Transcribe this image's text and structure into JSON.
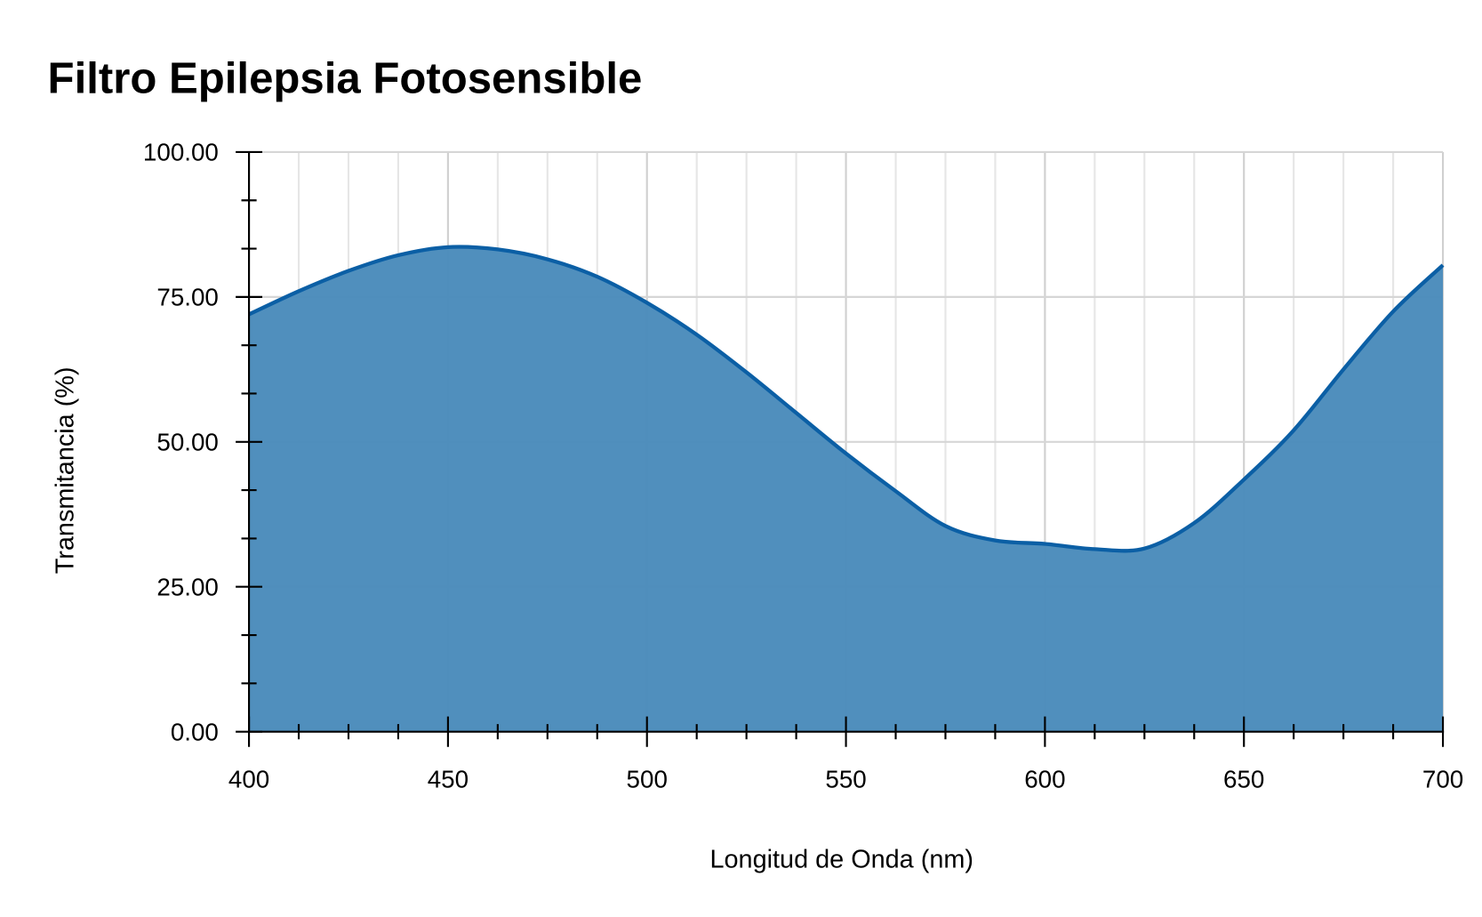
{
  "chart_data": {
    "type": "area",
    "title": "Filtro Epilepsia Fotosensible",
    "xlabel": "Longitud de Onda (nm)",
    "ylabel": "Transmitancia (%)",
    "xlim": [
      400,
      700
    ],
    "ylim": [
      0,
      100
    ],
    "xticks": [
      "400",
      "450",
      "500",
      "550",
      "600",
      "650",
      "700"
    ],
    "yticks": [
      "0.00",
      "25.00",
      "50.00",
      "75.00",
      "100.00"
    ],
    "grid": true,
    "series": [
      {
        "name": "Transmitancia",
        "x": [
          400,
          412.5,
          425,
          437.5,
          450,
          462.5,
          475,
          487.5,
          500,
          512.5,
          525,
          537.5,
          550,
          562.5,
          575,
          587.5,
          600,
          612.5,
          625,
          637.5,
          650,
          662.5,
          675,
          687.5,
          700
        ],
        "y": [
          72,
          76,
          79.5,
          82.2,
          83.6,
          83.2,
          81.5,
          78.5,
          74,
          68.5,
          62,
          55,
          48,
          41.5,
          35.5,
          33,
          32.4,
          31.5,
          31.6,
          36,
          43.5,
          52,
          62.5,
          72.5,
          80.5
        ]
      }
    ],
    "colors": {
      "line": "#0b5fa5",
      "fill": "#4a8bbb",
      "grid": "#d9d9d9"
    }
  }
}
